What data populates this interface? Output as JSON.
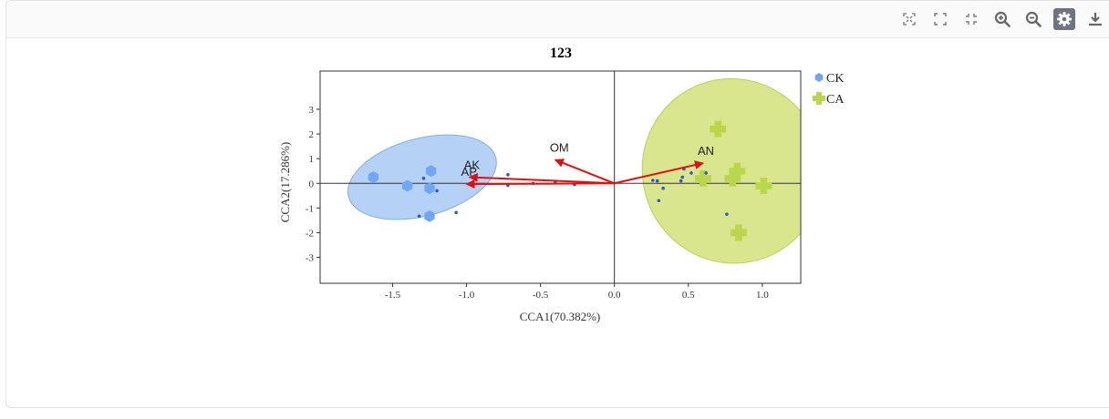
{
  "toolbar": {
    "icons": [
      "expand-icon",
      "fullscreen-icon",
      "shrink-icon",
      "zoom-in-icon",
      "zoom-out-icon",
      "settings-icon",
      "download-icon"
    ]
  },
  "chart_data": {
    "type": "scatter",
    "title": "123",
    "xlabel": "CCA1(70.382%)",
    "ylabel": "CCA2(17.286%)",
    "xlim": [
      -1.99,
      1.26
    ],
    "ylim": [
      -4.05,
      4.55
    ],
    "xticks": [
      "-1.5",
      "-1.0",
      "-0.5",
      "0.0",
      "0.5",
      "1.0"
    ],
    "xtick_values": [
      -1.5,
      -1.0,
      -0.5,
      0.0,
      0.5,
      1.0
    ],
    "yticks": [
      "-3",
      "-2",
      "-1",
      "0",
      "1",
      "2",
      "3"
    ],
    "ytick_values": [
      -3,
      -2,
      -1,
      0,
      1,
      2,
      3
    ],
    "legend_position": "top-right",
    "series": [
      {
        "name": "CK",
        "color": "#6fa7f4",
        "marker": "hexagon",
        "points": [
          [
            -1.63,
            0.25
          ],
          [
            -1.4,
            -0.1
          ],
          [
            -1.24,
            0.5
          ],
          [
            -1.25,
            -0.2
          ],
          [
            -1.25,
            -1.33
          ]
        ],
        "ellipse": {
          "cx": -1.3,
          "cy": 0.25,
          "rx": 0.515,
          "ry": 1.57,
          "angle": -15,
          "fill": "#a9c9f5",
          "stroke": "#7eaef0"
        }
      },
      {
        "name": "CA",
        "color": "#bcd64c",
        "marker": "cross",
        "points": [
          [
            0.7,
            2.2
          ],
          [
            0.8,
            0.2
          ],
          [
            0.83,
            0.5
          ],
          [
            0.6,
            0.2
          ],
          [
            1.01,
            -0.1
          ],
          [
            0.84,
            -2.0
          ]
        ],
        "ellipse": {
          "cx": 0.8,
          "cy": 0.5,
          "rx": 0.61,
          "ry": 3.75,
          "angle": -20,
          "fill": "#d4e27a",
          "stroke": "#b9d054"
        }
      }
    ],
    "species_points": {
      "color": "#2d58c8",
      "points": [
        [
          -1.29,
          0.2
        ],
        [
          -1.2,
          -0.3
        ],
        [
          -1.07,
          -1.18
        ],
        [
          -1.32,
          -1.33
        ],
        [
          -0.72,
          0.35
        ],
        [
          -0.72,
          -0.08
        ],
        [
          -0.55,
          0.0
        ],
        [
          -0.4,
          0.05
        ],
        [
          -0.27,
          -0.05
        ],
        [
          0.26,
          0.12
        ],
        [
          0.29,
          0.1
        ],
        [
          0.33,
          -0.2
        ],
        [
          0.3,
          -0.7
        ],
        [
          0.47,
          0.58
        ],
        [
          0.46,
          0.25
        ],
        [
          0.52,
          0.42
        ],
        [
          0.45,
          0.1
        ],
        [
          0.62,
          0.42
        ],
        [
          0.76,
          -1.25
        ]
      ]
    },
    "arrows": [
      {
        "label": "AK",
        "x": -0.98,
        "y": 0.25
      },
      {
        "label": "AP",
        "x": -1.0,
        "y": -0.03
      },
      {
        "label": "OM",
        "x": -0.4,
        "y": 0.95
      },
      {
        "label": "AN",
        "x": 0.6,
        "y": 0.82
      }
    ],
    "arrow_color": "#e01010"
  }
}
